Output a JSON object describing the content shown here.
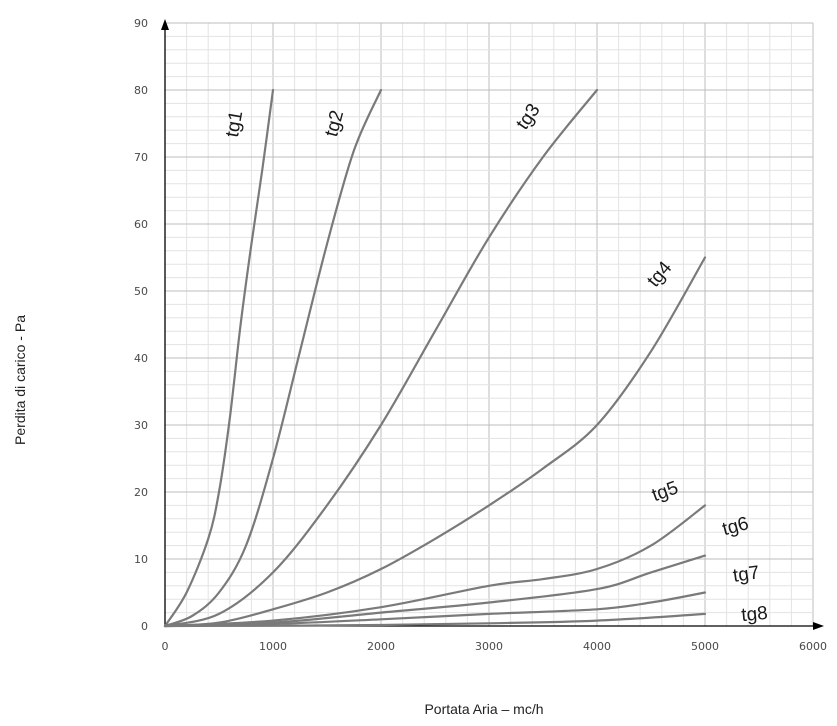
{
  "chart_data": {
    "type": "line",
    "xlabel": "Portata Aria – mc/h",
    "ylabel": "Perdita di carico - Pa",
    "xlim": [
      0,
      6000
    ],
    "ylim": [
      0,
      90
    ],
    "x_ticks": [
      0,
      1000,
      2000,
      3000,
      4000,
      5000,
      6000
    ],
    "y_ticks": [
      0,
      10,
      20,
      30,
      40,
      50,
      60,
      70,
      80,
      90
    ],
    "x_tick_labels": [
      "0",
      "1000",
      "2000",
      "3000",
      "4000",
      "5000",
      "6000"
    ],
    "y_tick_labels": [
      "0",
      "10",
      "20",
      "30",
      "40",
      "50",
      "60",
      "70",
      "80",
      "90"
    ],
    "grid": true,
    "minor_grid": true,
    "line_color": "#7a7a7a",
    "series": [
      {
        "name": "tg1",
        "x": [
          0,
          200,
          400,
          500,
          600,
          700,
          800,
          900,
          1000
        ],
        "y": [
          0,
          5,
          13,
          20,
          31,
          45,
          57,
          68,
          80
        ]
      },
      {
        "name": "tg2",
        "x": [
          0,
          250,
          500,
          750,
          1000,
          1250,
          1500,
          1750,
          2000
        ],
        "y": [
          0,
          1.5,
          5,
          12,
          25,
          41,
          57,
          71,
          80
        ]
      },
      {
        "name": "tg3",
        "x": [
          0,
          500,
          1000,
          1500,
          2000,
          2500,
          3000,
          3500,
          4000
        ],
        "y": [
          0,
          1.8,
          8,
          18,
          30,
          44,
          58,
          70,
          80
        ]
      },
      {
        "name": "tg4",
        "x": [
          0,
          500,
          1000,
          1500,
          2000,
          2500,
          3000,
          3500,
          4000,
          4500,
          5000
        ],
        "y": [
          0,
          0.5,
          2.5,
          5,
          8.5,
          13,
          18,
          23.5,
          30,
          41,
          55
        ]
      },
      {
        "name": "tg5",
        "x": [
          0,
          1000,
          2000,
          3000,
          3500,
          4000,
          4500,
          5000
        ],
        "y": [
          0,
          0.8,
          2.8,
          6,
          7,
          8.5,
          12,
          18
        ]
      },
      {
        "name": "tg6",
        "x": [
          0,
          1000,
          2000,
          3000,
          4000,
          4500,
          5000
        ],
        "y": [
          0,
          0.5,
          2,
          3.5,
          5.5,
          8,
          10.5
        ]
      },
      {
        "name": "tg7",
        "x": [
          0,
          1000,
          2000,
          3000,
          4000,
          4500,
          5000
        ],
        "y": [
          0,
          0.3,
          1,
          1.8,
          2.5,
          3.5,
          5
        ]
      },
      {
        "name": "tg8",
        "x": [
          0,
          1000,
          2000,
          3000,
          4000,
          5000
        ],
        "y": [
          0,
          0.05,
          0.15,
          0.4,
          0.8,
          1.8
        ]
      }
    ]
  }
}
